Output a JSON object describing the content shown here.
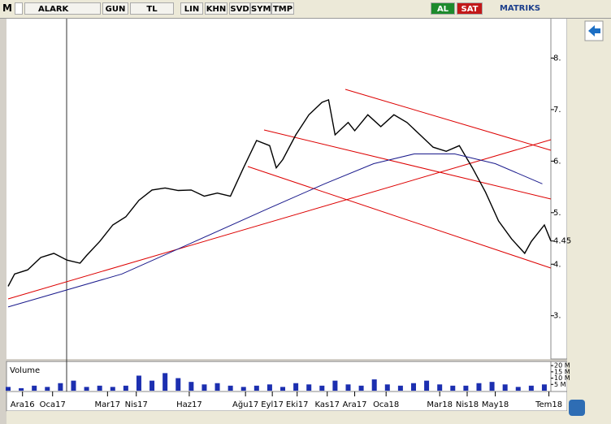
{
  "toolbar": {
    "logo": "M",
    "symbol": "ALARK",
    "buttons": [
      "GUN",
      "TL",
      "LIN",
      "KHN",
      "SVD",
      "SYM",
      "TMP"
    ],
    "buy": "AL",
    "sell": "SAT",
    "brand": "MATRIKS"
  },
  "chart_data": [
    {
      "type": "line",
      "xlim": [
        0,
        83
      ],
      "xticks": [
        {
          "value": 2.2,
          "label": "Ara16"
        },
        {
          "value": 6.8,
          "label": "Oca17"
        },
        {
          "value": 15.2,
          "label": "Mar17"
        },
        {
          "value": 19.6,
          "label": "Nis17"
        },
        {
          "value": 27.7,
          "label": "Haz17"
        },
        {
          "value": 36.3,
          "label": "Ağu17"
        },
        {
          "value": 40.4,
          "label": "Eyl17"
        },
        {
          "value": 44.2,
          "label": "Eki17"
        },
        {
          "value": 48.8,
          "label": "Kas17"
        },
        {
          "value": 53.0,
          "label": "Ara17"
        },
        {
          "value": 57.8,
          "label": "Oca18"
        },
        {
          "value": 66.0,
          "label": "Mar18"
        },
        {
          "value": 70.2,
          "label": "Nis18"
        },
        {
          "value": 74.5,
          "label": "May18"
        },
        {
          "value": 82.7,
          "label": "Tem18"
        }
      ],
      "ylim": [
        2.16,
        8.78
      ],
      "yticks": [
        {
          "value": 3,
          "label": "3."
        },
        {
          "value": 4,
          "label": "4."
        },
        4.45,
        {
          "value": 5,
          "label": "5."
        },
        {
          "value": 6,
          "label": "6."
        },
        {
          "value": 7,
          "label": "7."
        },
        {
          "value": 8,
          "label": "8."
        }
      ],
      "series": [
        {
          "color": "#000000",
          "x": [
            0,
            1,
            3,
            5,
            7,
            9,
            11,
            12,
            14,
            16,
            18,
            20,
            22,
            24,
            26,
            28,
            30,
            32,
            34,
            36,
            38,
            40,
            41,
            42,
            44,
            46,
            48,
            49,
            50,
            52,
            53,
            55,
            57,
            59,
            61,
            63,
            65,
            67,
            69,
            71,
            73,
            75,
            77,
            79,
            80,
            82,
            83
          ],
          "values": [
            3.57,
            3.81,
            3.89,
            4.13,
            4.21,
            4.08,
            4.02,
            4.17,
            4.44,
            4.76,
            4.92,
            5.24,
            5.44,
            5.48,
            5.43,
            5.44,
            5.32,
            5.38,
            5.32,
            5.87,
            6.4,
            6.3,
            5.87,
            6.03,
            6.51,
            6.9,
            7.14,
            7.19,
            6.51,
            6.75,
            6.59,
            6.9,
            6.67,
            6.9,
            6.75,
            6.51,
            6.27,
            6.19,
            6.3,
            5.87,
            5.4,
            4.84,
            4.49,
            4.21,
            4.44,
            4.76,
            4.45
          ]
        },
        {
          "color": "#1a1a8c",
          "x": [
            0,
            17.4,
            27.3,
            39.8,
            48.4,
            55.9,
            62.1,
            68.3,
            74.5,
            81.7
          ],
          "values": [
            3.17,
            3.81,
            4.37,
            5.08,
            5.56,
            5.95,
            6.14,
            6.14,
            5.95,
            5.56
          ]
        }
      ]
    },
    {
      "type": "bar",
      "title": "Volume",
      "color": "#1c2fb0",
      "xlim": [
        0,
        83
      ],
      "ylim": [
        0,
        22
      ],
      "yticks": [
        {
          "value": 5,
          "label": "5 M"
        },
        {
          "value": 10,
          "label": "10 M"
        },
        {
          "value": 15,
          "label": "15 M"
        },
        {
          "value": 20,
          "label": "20 M"
        }
      ],
      "x": [
        0,
        2,
        4,
        6,
        8,
        10,
        12,
        14,
        16,
        18,
        20,
        22,
        24,
        26,
        28,
        30,
        32,
        34,
        36,
        38,
        40,
        42,
        44,
        46,
        48,
        50,
        52,
        54,
        56,
        58,
        60,
        62,
        64,
        66,
        68,
        70,
        72,
        74,
        76,
        78,
        80,
        82
      ],
      "values": [
        3,
        2,
        4,
        3,
        6,
        8,
        3,
        4,
        3,
        4,
        12,
        8,
        14,
        10,
        7,
        5,
        6,
        4,
        3,
        4,
        5,
        3,
        6,
        5,
        4,
        8,
        5,
        4,
        9,
        5,
        4,
        6,
        8,
        5,
        4,
        4,
        6,
        7,
        5,
        3,
        4,
        5
      ]
    }
  ]
}
